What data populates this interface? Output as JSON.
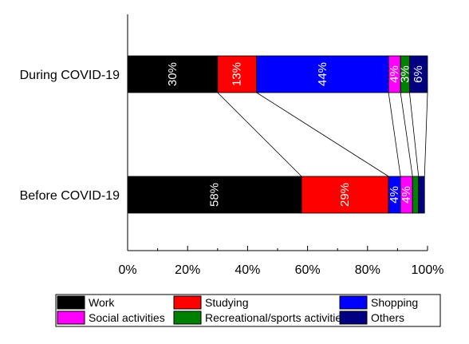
{
  "chart_data": {
    "type": "bar",
    "orientation": "horizontal",
    "stacked": true,
    "categories": [
      "During COVID-19",
      "Before COVID-19"
    ],
    "series": [
      {
        "name": "Work",
        "color": "#000000",
        "values": [
          30,
          58
        ],
        "labels": [
          "30%",
          "58%"
        ]
      },
      {
        "name": "Studying",
        "color": "#ff0000",
        "values": [
          13,
          29
        ],
        "labels": [
          "13%",
          "29%"
        ]
      },
      {
        "name": "Shopping",
        "color": "#0000ff",
        "values": [
          44,
          4
        ],
        "labels": [
          "44%",
          "4%"
        ]
      },
      {
        "name": "Social activities",
        "color": "#ff00ff",
        "values": [
          4,
          4
        ],
        "labels": [
          "4%",
          "4%"
        ]
      },
      {
        "name": "Recreational/sports activities",
        "color": "#008000",
        "values": [
          3,
          2
        ],
        "labels": [
          "3%",
          ""
        ]
      },
      {
        "name": "Others",
        "color": "#000080",
        "values": [
          6,
          2
        ],
        "labels": [
          "6%",
          ""
        ]
      }
    ],
    "xlim": [
      0,
      100
    ],
    "xticks": [
      "0%",
      "20%",
      "40%",
      "60%",
      "80%",
      "100%"
    ],
    "title": "",
    "xlabel": "",
    "ylabel": "",
    "grid": false,
    "legend_position": "bottom",
    "connector_lines": true
  }
}
